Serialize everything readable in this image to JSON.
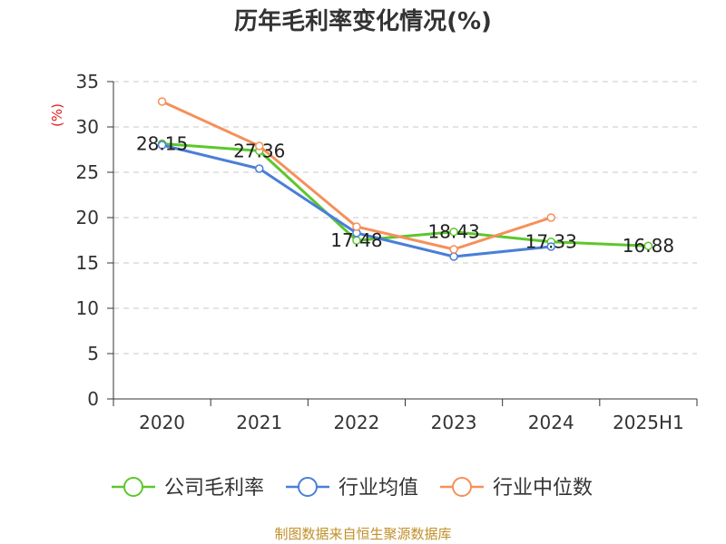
{
  "colors": {
    "title": "#333333",
    "ylabel": "#e02020",
    "axis": "#333333",
    "grid": "#c8c8c8",
    "source": "#c0902a"
  },
  "chart_data": {
    "type": "line",
    "title": "历年毛利率变化情况(%)",
    "ylabel": "(%)",
    "xlabel": "",
    "categories": [
      "2020",
      "2021",
      "2022",
      "2023",
      "2024",
      "2025H1"
    ],
    "ylim": [
      0,
      35
    ],
    "yticks": [
      0,
      5,
      10,
      15,
      20,
      25,
      30,
      35
    ],
    "grid": true,
    "legend_position": "bottom",
    "series": [
      {
        "name": "公司毛利率",
        "color": "#5cc72d",
        "values": [
          28.15,
          27.36,
          17.48,
          18.43,
          17.33,
          16.88
        ],
        "labels": [
          "28.15",
          "27.36",
          "17.48",
          "18.43",
          "17.33",
          "16.88"
        ]
      },
      {
        "name": "行业均值",
        "color": "#4a7fd8",
        "values": [
          28.0,
          25.4,
          18.3,
          15.7,
          16.8,
          null
        ],
        "labels": []
      },
      {
        "name": "行业中位数",
        "color": "#f5905a",
        "values": [
          32.8,
          27.9,
          19.0,
          16.5,
          20.0,
          null
        ],
        "labels": []
      }
    ]
  },
  "source": "制图数据来自恒生聚源数据库"
}
